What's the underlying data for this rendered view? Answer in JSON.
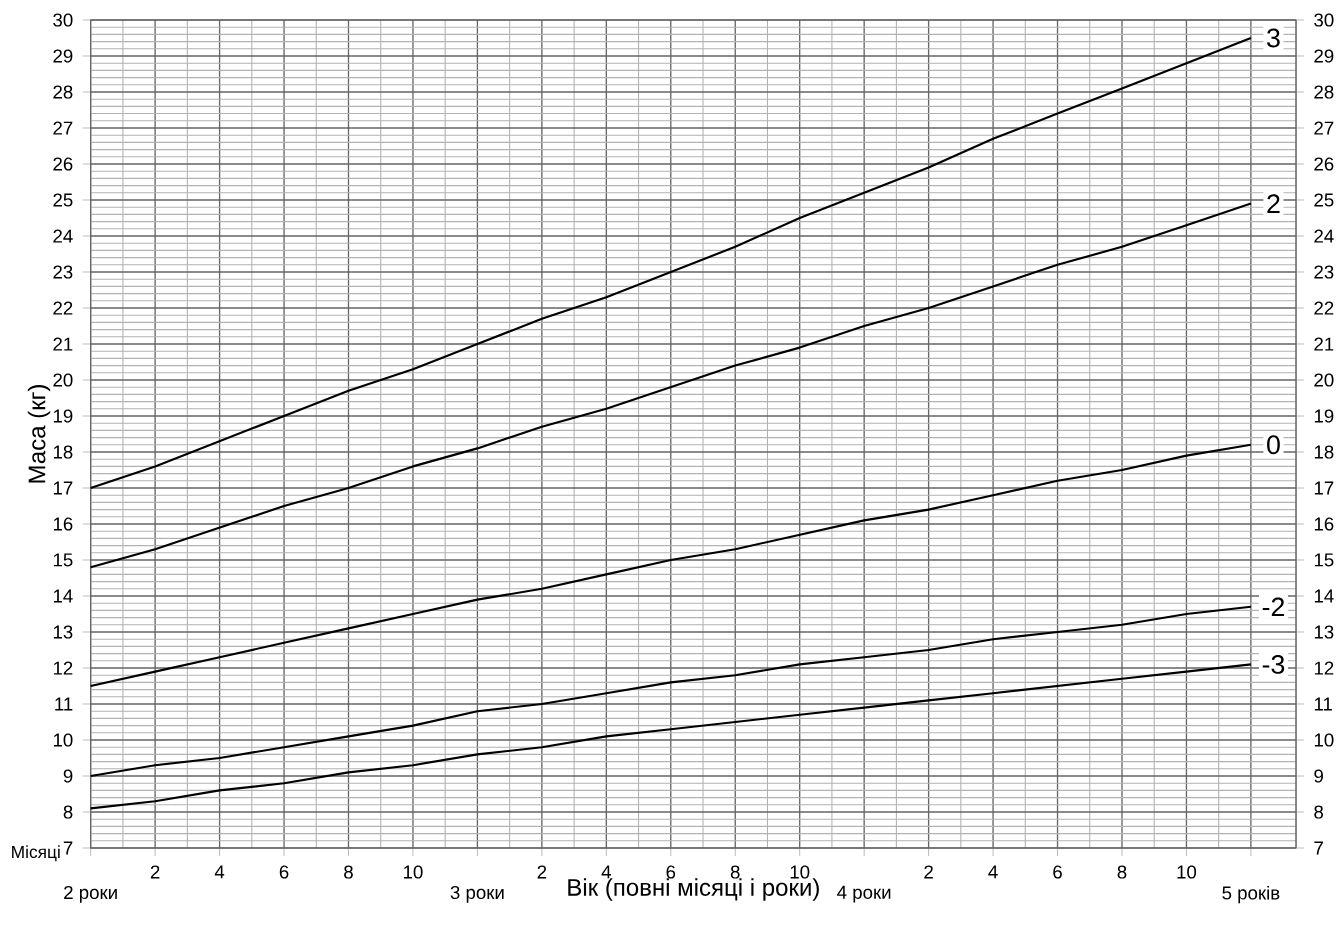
{
  "chart_data": {
    "type": "line",
    "xlabel": "Вік (повні місяці і роки)",
    "ylabel": "Маса (кг)",
    "categories": [
      null,
      "2",
      "4",
      "6",
      "8",
      "10",
      null,
      "2",
      "4",
      "6",
      "8",
      "10",
      null,
      "2",
      "4",
      "6",
      "8",
      "10",
      null
    ],
    "series": [
      {
        "name": "3",
        "color": "#000000",
        "values": [
          17.0,
          17.6,
          18.3,
          19.0,
          19.7,
          20.3,
          21.0,
          21.7,
          22.3,
          23.0,
          23.7,
          24.5,
          25.2,
          25.9,
          26.7,
          27.4,
          28.1,
          28.8,
          29.5
        ]
      },
      {
        "name": "2",
        "color": "#000000",
        "values": [
          14.8,
          15.3,
          15.9,
          16.5,
          17.0,
          17.6,
          18.1,
          18.7,
          19.2,
          19.8,
          20.4,
          20.9,
          21.5,
          22.0,
          22.6,
          23.2,
          23.7,
          24.3,
          24.9
        ]
      },
      {
        "name": "0",
        "color": "#000000",
        "values": [
          11.5,
          11.9,
          12.3,
          12.7,
          13.1,
          13.5,
          13.9,
          14.2,
          14.6,
          15.0,
          15.3,
          15.7,
          16.1,
          16.4,
          16.8,
          17.2,
          17.5,
          17.9,
          18.2
        ]
      },
      {
        "name": "-2",
        "color": "#000000",
        "values": [
          9.0,
          9.3,
          9.5,
          9.8,
          10.1,
          10.4,
          10.8,
          11.0,
          11.3,
          11.6,
          11.8,
          12.1,
          12.3,
          12.5,
          12.8,
          13.0,
          13.2,
          13.5,
          13.7
        ]
      },
      {
        "name": "-3",
        "color": "#000000",
        "values": [
          8.1,
          8.3,
          8.6,
          8.8,
          9.1,
          9.3,
          9.6,
          9.8,
          10.1,
          10.3,
          10.5,
          10.7,
          10.9,
          11.1,
          11.3,
          11.5,
          11.7,
          11.9,
          12.1
        ]
      }
    ],
    "ylim": [
      7,
      30
    ],
    "yticks": [
      7,
      8,
      9,
      10,
      11,
      12,
      13,
      14,
      15,
      16,
      17,
      18,
      19,
      20,
      21,
      22,
      23,
      24,
      25,
      26,
      27,
      28,
      29,
      30
    ],
    "y2lim": [
      7,
      30
    ],
    "y2ticks": [
      7,
      8,
      9,
      10,
      11,
      12,
      13,
      14,
      15,
      16,
      17,
      18,
      19,
      20,
      21,
      22,
      23,
      24,
      25,
      26,
      27,
      28,
      29,
      30
    ],
    "grid": true,
    "annotations": [
      "Місяці",
      "2 роки",
      "3 роки",
      "4 роки",
      "5 років"
    ]
  }
}
